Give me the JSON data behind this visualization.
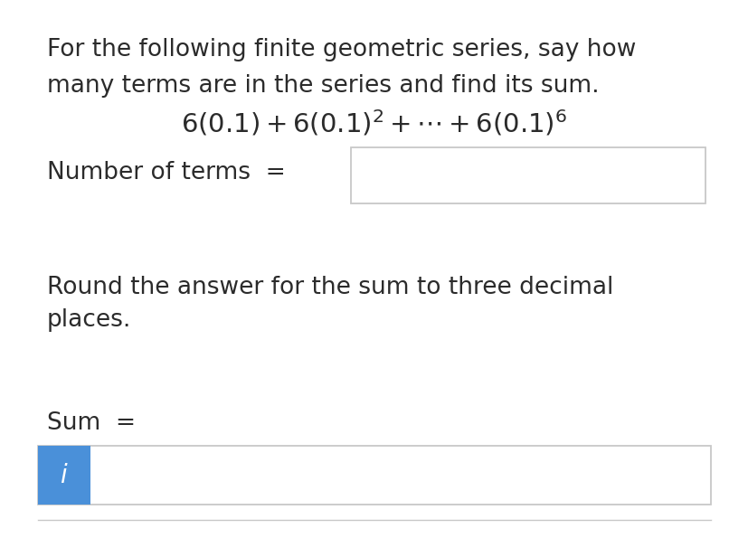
{
  "white_bg": "#ffffff",
  "blue_box_color": "#4a90d9",
  "border_color": "#c8c8c8",
  "text_color": "#2b2b2b",
  "line1": "For the following finite geometric series, say how",
  "line2": "many terms are in the series and find its sum.",
  "formula": "$6(0.1) + 6(0.1)^2 + \\cdots + 6(0.1)^6$",
  "label_terms": "Number of terms  =",
  "label_round": "Round the answer for the sum to three decimal\nplaces.",
  "label_sum": "Sum  =",
  "italic_i": "$\\mathit{i}$",
  "font_size_body": 19,
  "font_size_formula": 21
}
